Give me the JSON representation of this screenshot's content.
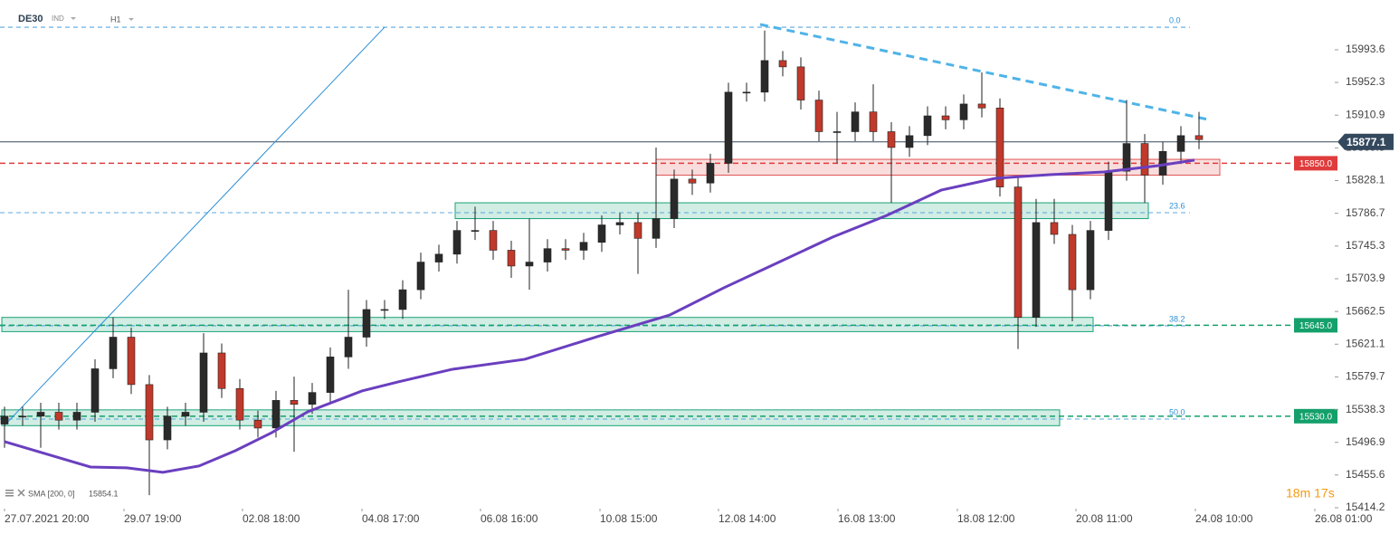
{
  "chart_data": {
    "type": "candlestick",
    "title": "DE30",
    "instrument_type": "IND",
    "timeframe": "H1",
    "up_color": "#2a2a2a",
    "down_color": "#c0392b",
    "x": [
      0,
      1,
      2,
      3,
      4,
      5,
      6,
      7,
      8,
      9,
      10,
      11,
      12,
      13,
      14,
      15,
      16,
      17,
      18,
      19,
      20,
      21,
      22,
      23,
      24,
      25,
      26,
      27,
      28,
      29,
      30,
      31,
      32,
      33,
      34,
      35,
      36,
      37,
      38,
      39,
      40,
      41,
      42,
      43,
      44,
      45,
      46,
      47,
      48,
      49,
      50,
      51,
      52,
      53,
      54,
      55,
      56,
      57,
      58,
      59,
      60,
      61,
      62,
      63,
      64,
      65,
      66
    ],
    "open": [
      15520,
      15530,
      15530,
      15535,
      15525,
      15535,
      15590,
      15630,
      15570,
      15500,
      15530,
      15535,
      15610,
      15565,
      15525,
      15515,
      15550,
      15545,
      15560,
      15605,
      15630,
      15665,
      15665,
      15690,
      15725,
      15735,
      15765,
      15765,
      15740,
      15720,
      15725,
      15742,
      15740,
      15750,
      15772,
      15775,
      15755,
      15780,
      15830,
      15825,
      15850,
      15940,
      15940,
      15980,
      15972,
      15930,
      15890,
      15890,
      15915,
      15890,
      15870,
      15885,
      15910,
      15905,
      15925,
      15920,
      15820,
      15655,
      15775,
      15760,
      15690,
      15765,
      15840,
      15875,
      15835,
      15865,
      15885
    ],
    "high": [
      15542,
      15542,
      15547,
      15547,
      15547,
      15602,
      15655,
      15642,
      15582,
      15542,
      15547,
      15635,
      15622,
      15577,
      15537,
      15562,
      15580,
      15572,
      15617,
      15690,
      15677,
      15677,
      15702,
      15737,
      15747,
      15777,
      15795,
      15777,
      15752,
      15780,
      15754,
      15754,
      15762,
      15784,
      15787,
      15787,
      15870,
      15842,
      15842,
      15862,
      15952,
      15952,
      16018,
      15992,
      15984,
      15942,
      15915,
      15927,
      15950,
      15902,
      15897,
      15922,
      15922,
      15937,
      15965,
      15932,
      15832,
      15805,
      15805,
      15772,
      15777,
      15852,
      15930,
      15887,
      15877,
      15897,
      15915
    ],
    "low": [
      15490,
      15518,
      15490,
      15513,
      15513,
      15523,
      15578,
      15558,
      15430,
      15488,
      15518,
      15523,
      15553,
      15513,
      15503,
      15503,
      15485,
      15533,
      15548,
      15590,
      15618,
      15653,
      15653,
      15678,
      15713,
      15723,
      15753,
      15728,
      15705,
      15690,
      15713,
      15728,
      15728,
      15738,
      15760,
      15710,
      15743,
      15768,
      15810,
      15813,
      15838,
      15928,
      15928,
      15960,
      15918,
      15878,
      15850,
      15878,
      15878,
      15800,
      15858,
      15873,
      15893,
      15893,
      15908,
      15808,
      15615,
      15643,
      15748,
      15650,
      15678,
      15753,
      15828,
      15800,
      15823,
      15853,
      15868
    ],
    "close": [
      15530,
      15530,
      15535,
      15525,
      15535,
      15590,
      15630,
      15570,
      15500,
      15530,
      15535,
      15610,
      15565,
      15525,
      15515,
      15550,
      15545,
      15560,
      15605,
      15630,
      15665,
      15665,
      15690,
      15725,
      15735,
      15765,
      15765,
      15740,
      15720,
      15725,
      15742,
      15740,
      15750,
      15772,
      15775,
      15755,
      15780,
      15830,
      15825,
      15850,
      15940,
      15940,
      15980,
      15972,
      15930,
      15890,
      15890,
      15915,
      15890,
      15870,
      15885,
      15910,
      15905,
      15925,
      15920,
      15820,
      15655,
      15775,
      15760,
      15690,
      15765,
      15840,
      15875,
      15835,
      15865,
      15885,
      15880
    ],
    "xlim": [
      -0.25,
      73.5
    ],
    "xticks": [
      {
        "value": 0,
        "label": "27.07.2021 20:00"
      },
      {
        "value": 6.6,
        "label": "29.07 19:00"
      },
      {
        "value": 13.15,
        "label": "02.08 18:00"
      },
      {
        "value": 19.75,
        "label": "04.08 17:00"
      },
      {
        "value": 26.3,
        "label": "06.08 16:00"
      },
      {
        "value": 32.9,
        "label": "10.08 15:00"
      },
      {
        "value": 39.45,
        "label": "12.08 14:00"
      },
      {
        "value": 46.05,
        "label": "16.08 13:00"
      },
      {
        "value": 52.65,
        "label": "18.08 12:00"
      },
      {
        "value": 59.2,
        "label": "20.08 11:00"
      },
      {
        "value": 65.8,
        "label": "24.08 10:00"
      },
      {
        "value": 72.4,
        "label": "26.08 01:00"
      }
    ],
    "ylim": [
      15413.0,
      16056.6
    ],
    "yticks": [
      15993.6,
      15952.3,
      15910.9,
      15869.5,
      15828.1,
      15786.7,
      15745.3,
      15703.9,
      15662.5,
      15621.1,
      15579.7,
      15538.3,
      15496.9,
      15455.6,
      15414.2
    ],
    "current_price": 15877.1,
    "current_price_color": "#34495e",
    "levels": [
      {
        "value": 15850,
        "label": "15850.0",
        "color": "#e03c3c"
      },
      {
        "value": 15645,
        "label": "15645.0",
        "color": "#14a06a"
      },
      {
        "value": 15530,
        "label": "15530.0",
        "color": "#14a06a"
      }
    ],
    "fibonacci_color": "#2b8fd6",
    "fibonacci": [
      {
        "level": "0.0",
        "price": 16022.2
      },
      {
        "level": "23.6",
        "price": 15787.5
      },
      {
        "level": "38.2",
        "price": 15644.4
      },
      {
        "level": "50.0",
        "price": 15526.4
      }
    ],
    "zones": [
      {
        "x": [
          36,
          67.15
        ],
        "y": [
          15835,
          15855
        ],
        "color": "#e05555"
      },
      {
        "x": [
          24.9,
          63.2
        ],
        "y": [
          15780,
          15800
        ],
        "color": "#1aa37a"
      },
      {
        "x": [
          -0.15,
          60.15
        ],
        "y": [
          15637,
          15655
        ],
        "color": "#1aa37a"
      },
      {
        "x": [
          -0.15,
          58.3
        ],
        "y": [
          15518,
          15538
        ],
        "color": "#1aa37a"
      }
    ],
    "trendlines": [
      {
        "x": [
          0,
          21
        ],
        "y": [
          15518.4,
          16022.2
        ],
        "color": "#2b8fd6",
        "dashed": false
      },
      {
        "x": [
          41.75,
          66.5
        ],
        "y": [
          16025.7,
          15905.4
        ],
        "color": "#4fb3e8",
        "dashed": true
      }
    ],
    "indicator": {
      "name": "SMA [200, 0]",
      "value": 15854.1,
      "color": "#6a3fbf",
      "x": [
        0,
        4.75,
        6.75,
        8.75,
        10.75,
        12.75,
        14.75,
        16.75,
        19.75,
        21.75,
        24.75,
        28.75,
        32.75,
        36.75,
        39.75,
        42.75,
        45.75,
        48.75,
        51.75,
        54.75,
        57.75,
        60.75,
        63.75,
        65.75
      ],
      "values": [
        15497.8,
        15465.7,
        15464.7,
        15459.0,
        15467.0,
        15486.3,
        15509.0,
        15535.6,
        15561.9,
        15573.4,
        15589.4,
        15602.0,
        15630.6,
        15658.0,
        15692.5,
        15724.5,
        15756.6,
        15784.0,
        15816.0,
        15831.0,
        15835.6,
        15839.0,
        15847.0,
        15854.0
      ]
    },
    "countdown": "18m 17s"
  }
}
